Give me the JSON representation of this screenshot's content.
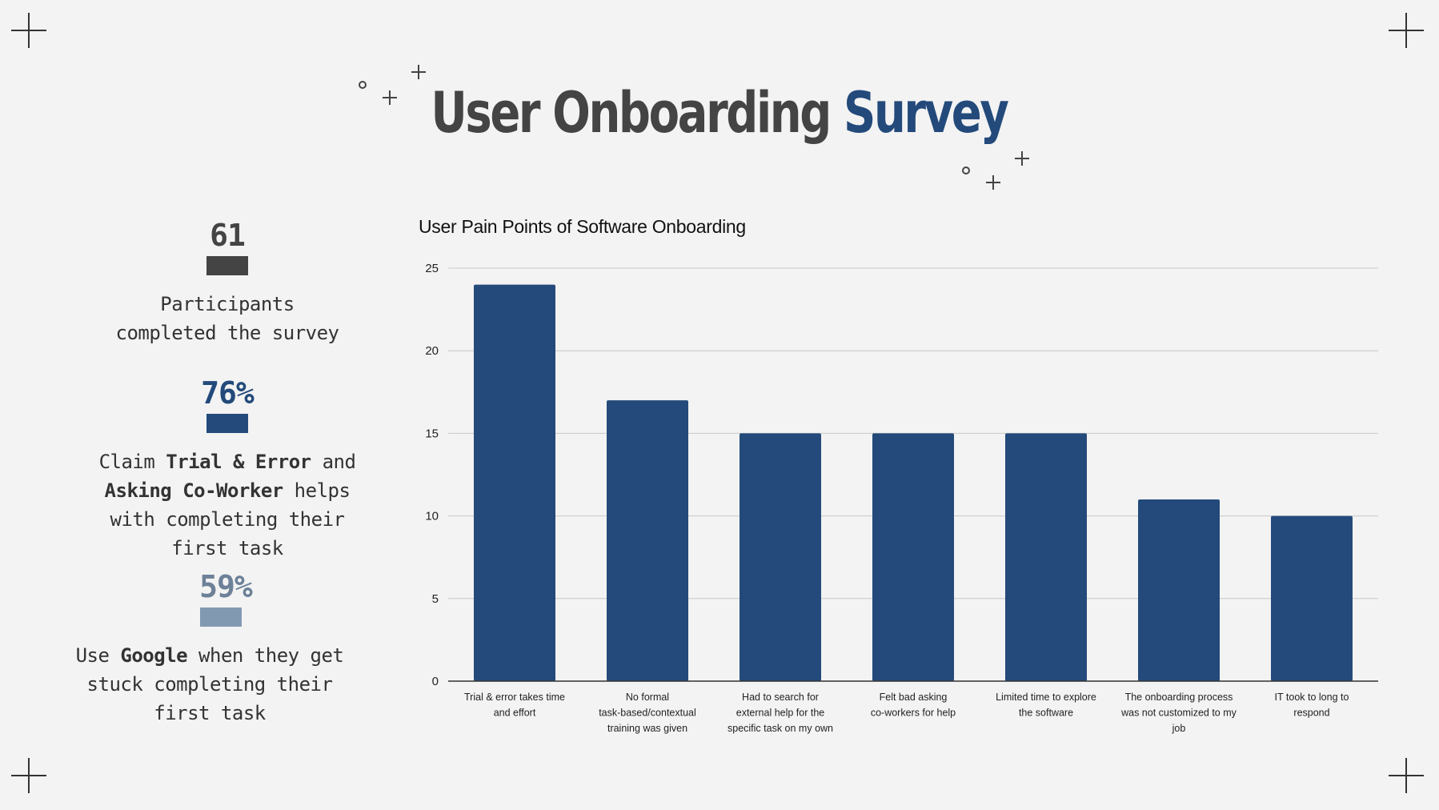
{
  "title": {
    "part1": "User Onboarding",
    "part2": "Survey"
  },
  "colors": {
    "accent": "#234a7a",
    "dark": "#444444",
    "muted": "#6d8198",
    "muted_bar": "#8299b2",
    "bar": "#234a7a"
  },
  "stats": [
    {
      "value": "61",
      "text_parts": [
        "Participants completed the survey"
      ]
    },
    {
      "value": "76%",
      "text_parts": [
        "Claim ",
        "Trial & Error",
        " and ",
        "Asking Co-Worker",
        " helps with completing their first task"
      ]
    },
    {
      "value": "59%",
      "text_parts": [
        "Use ",
        "Google",
        " when they get stuck completing their first task"
      ]
    }
  ],
  "chart_data": {
    "type": "bar",
    "title": "User Pain Points of Software Onboarding",
    "xlabel": "",
    "ylabel": "",
    "ylim": [
      0,
      25
    ],
    "yticks": [
      0,
      5,
      10,
      15,
      20,
      25
    ],
    "grid": true,
    "categories": [
      "Trial & error takes time and effort",
      "No formal task-based/contextual training was given",
      "Had to search for external help for the specific task on my own",
      "Felt bad asking co-workers for help",
      "Limited time to explore the software",
      "The onboarding process was not customized to my job",
      "IT took to long to respond"
    ],
    "values": [
      24,
      17,
      15,
      15,
      15,
      11,
      10
    ]
  }
}
